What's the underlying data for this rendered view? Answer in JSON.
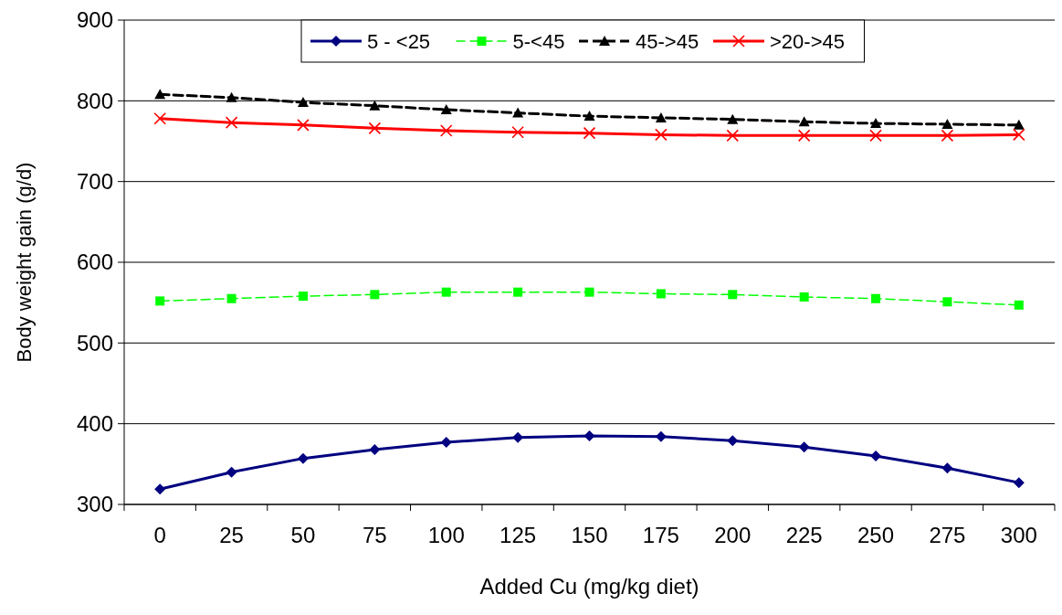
{
  "chart_data": {
    "type": "line",
    "xlabel": "Added Cu (mg/kg diet)",
    "ylabel": "Body weight gain (g/d)",
    "categories": [
      "0",
      "25",
      "50",
      "75",
      "100",
      "125",
      "150",
      "175",
      "200",
      "225",
      "250",
      "275",
      "300"
    ],
    "ylim": [
      300,
      900
    ],
    "yticks": [
      300,
      400,
      500,
      600,
      700,
      800,
      900
    ],
    "grid": "y",
    "legend": "top",
    "series": [
      {
        "name": "5 - <25",
        "color": "#000080",
        "marker": "diamond",
        "line_style": "solid",
        "values": [
          319,
          340,
          357,
          368,
          377,
          383,
          385,
          384,
          379,
          371,
          360,
          345,
          327
        ]
      },
      {
        "name": "5-<45",
        "color": "#00ff00",
        "marker": "square",
        "line_style": "dashed",
        "values": [
          552,
          555,
          558,
          560,
          563,
          563,
          563,
          561,
          560,
          557,
          555,
          551,
          547
        ]
      },
      {
        "name": "45->45",
        "color": "#000000",
        "marker": "triangle",
        "line_style": "dashed",
        "values": [
          808,
          804,
          798,
          794,
          789,
          785,
          781,
          779,
          777,
          774,
          772,
          771,
          770
        ]
      },
      {
        "name": ">20->45",
        "color": "#ff0000",
        "marker": "cross",
        "line_style": "solid",
        "values": [
          778,
          773,
          770,
          766,
          763,
          761,
          760,
          758,
          757,
          757,
          757,
          757,
          758
        ]
      }
    ]
  }
}
